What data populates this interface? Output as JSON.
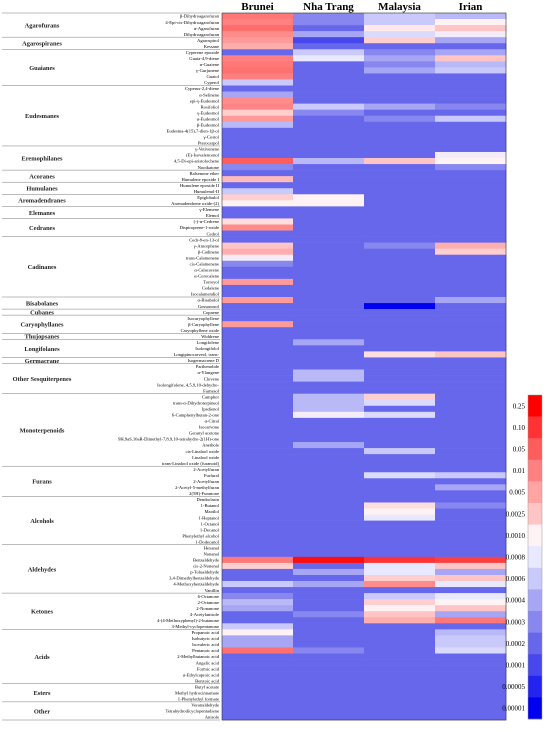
{
  "chart_data": {
    "type": "heatmap",
    "title": "",
    "xlabel": "",
    "ylabel": "",
    "columns": [
      "Brunei",
      "Nha Trang",
      "Malaysia",
      "Irian"
    ],
    "groups": [
      {
        "name": "Agarofurans",
        "compounds": [
          "β-Dihydroagarofuran",
          "4-Epi-cis-Dihydroagarofuran",
          "α-Agarofuran",
          "Dihydroagarofuran"
        ]
      },
      {
        "name": "Agarospiranes",
        "compounds": [
          "Agarospirol",
          "Kessane"
        ]
      },
      {
        "name": "Guaianes",
        "compounds": [
          "Cyperene epoxide",
          "Guaia-4,9-diene",
          "α-Guaiene",
          "γ-Gurjunene",
          "Guaiol",
          "Cyperol"
        ]
      },
      {
        "name": "Eudesmanes",
        "compounds": [
          "Cyperus-2,4-diene",
          "α-Selinene",
          "epi-γ-Eudesmol",
          "Rosifoliol",
          "γ-Eudesmol",
          "α-Eudesmol",
          "β-Eudesmol",
          "Eudesma-4(15),7-dien-1β-ol",
          "γ-Costol",
          "Pterocarpol"
        ]
      },
      {
        "name": "Eremophilanes",
        "compounds": [
          "γ-Vetivenene",
          "(E)-Isovalencenol",
          "4,5-Di-epi-aristolochene",
          "Nootkatone"
        ]
      },
      {
        "name": "Acoranes",
        "compounds": [
          "Balsenone ether",
          "Humulene epoxide I"
        ]
      },
      {
        "name": "Humulanes",
        "compounds": [
          "Humulene epoxide II",
          "Humulenol-II"
        ]
      },
      {
        "name": "Aromadendranes",
        "compounds": [
          "Epiglobulol",
          "Aromadendrene oxide-(2)"
        ]
      },
      {
        "name": "Elemanes",
        "compounds": [
          "γ-Elemene",
          "Elemol"
        ]
      },
      {
        "name": "Cedranes",
        "compounds": [
          "(-)-α-Cedrene",
          "Dispiroprene-1-oxide",
          "Cedrol"
        ]
      },
      {
        "name": "Cadinanes",
        "compounds": [
          "Cedr-8-en-13-ol",
          "γ-Amorphene",
          "β-Cadinene",
          "trans-Calamenene",
          "cis-Calamenene",
          "α-Calacorene",
          "α-Corocalene",
          "Torreyol",
          "Cedalene",
          "Isocalamendiol"
        ]
      },
      {
        "name": "Bisabolanes",
        "compounds": [
          "α-Bisabolol",
          "Gossonorol"
        ]
      },
      {
        "name": "Cubanes",
        "compounds": [
          "Copaene"
        ]
      },
      {
        "name": "Caryophyllanes",
        "compounds": [
          "Isocaryophyllene",
          "β-Caryophyllene",
          "Caryophyllene oxide"
        ]
      },
      {
        "name": "Thujopsanes",
        "compounds": [
          "Widdrene"
        ]
      },
      {
        "name": "Longifolanes",
        "compounds": [
          "Longifolene",
          "Isolongifolol",
          "Longipinocarveol, trans-"
        ]
      },
      {
        "name": "Germacrane",
        "compounds": [
          "Isogermacrene D"
        ]
      },
      {
        "name": "Other Sesquiterpenes",
        "compounds": [
          "Parthenolide",
          "α-Ylangene",
          "Clovene",
          "Isolongifolene, 4,5,9,10-dehydro-",
          "Farnesol"
        ]
      },
      {
        "name": "Monoterpenoids",
        "compounds": [
          "Camphor",
          "trans-α-Dihydroterpineol",
          "Ipsdienol",
          "6-Camphenylbutan-2-one",
          "α-Citral",
          "Isocarvone",
          "Geranyl acetone",
          "9H,9aS,10aR-Dimethyl-7,8,9,10-tetrahydro-2(1H)-one",
          "Anethole",
          "cis-Linalool oxide",
          "Linalool oxide",
          "trans-Linalool oxide (furanoid)"
        ]
      },
      {
        "name": "Furans",
        "compounds": [
          "2-Acetylfuran",
          "Furfural",
          "2-Acetylfuran",
          "2-Acetyl-5-methylfuran",
          "2(5H)-Furanone"
        ]
      },
      {
        "name": "Alcohols",
        "compounds": [
          "Dendrolasin",
          "1-Butanol",
          "Maoilol",
          "1-Heptanol",
          "1-Octanol",
          "1-Decanol",
          "Phenylethyl alcohol",
          "1-Dodecanol"
        ]
      },
      {
        "name": "Aldehydes",
        "compounds": [
          "Hexanal",
          "Nonanal",
          "Benzaldehyde",
          "cis-2-Nonenal",
          "p-Tolualdehyde",
          "3,4-Dimethylbenzaldehyde",
          "4-Methoxybenzaldehyde",
          "Vanillin"
        ]
      },
      {
        "name": "Ketones",
        "compounds": [
          "6-Octanone",
          "2-Octanone",
          "2-Nonanone",
          "4-Acetylanisole",
          "4-(4-Methoxyphenyl)-2-butanone",
          "3-Methyl-cyclopentanone"
        ]
      },
      {
        "name": "Acids",
        "compounds": [
          "Propanoic acid",
          "Isobutyric acid",
          "Isovaleric acid",
          "Pentanoic acid",
          "2-Methylbutanoic acid",
          "Angelic acid",
          "Formic acid",
          "α-Ethylcaproic acid",
          "Benzoic acid"
        ]
      },
      {
        "name": "Esters",
        "compounds": [
          "Butyl acetate",
          "Methyl hydrocinnamate",
          "1-Phenylethyl formate"
        ]
      },
      {
        "name": "Other",
        "compounds": [
          "Veratraldehyde",
          "Tetrahydrodicyclopentadiene",
          "Anisole"
        ]
      }
    ],
    "values": [
      [
        0.015,
        0.0003,
        0.0006,
        0.0005
      ],
      [
        0.01,
        0.0003,
        0.0006,
        0.001
      ],
      [
        0.025,
        0.0002,
        0.0012,
        0.0025
      ],
      [
        0.008,
        0.0004,
        0.0007,
        0.0009
      ],
      [
        0.006,
        0.0001,
        0.002,
        0.0004
      ],
      [
        0.004,
        0.0002,
        0.0002,
        0.0002
      ],
      [
        0.0002,
        0.0006,
        0.0003,
        0.0004
      ],
      [
        0.01,
        0.0008,
        0.0004,
        0.0025
      ],
      [
        0.015,
        0.0002,
        0.0003,
        0.0005
      ],
      [
        0.02,
        0.0002,
        0.0004,
        0.0006
      ],
      [
        0.01,
        0.0002,
        0.0002,
        0.0002
      ],
      [
        0.0006,
        0.0002,
        0.0002,
        0.0002
      ],
      [
        0.0002,
        0.0002,
        0.0002,
        0.0002
      ],
      [
        0.0004,
        0.0002,
        0.0002,
        0.0002
      ],
      [
        0.008,
        0.0002,
        0.0002,
        0.0002
      ],
      [
        0.009,
        0.0006,
        0.0004,
        0.0003
      ],
      [
        0.002,
        0.0003,
        0.0002,
        0.0002
      ],
      [
        0.006,
        0.0002,
        0.0003,
        0.0006
      ],
      [
        0.0005,
        0.0002,
        0.0002,
        0.0002
      ],
      [
        0.0002,
        0.0002,
        0.0002,
        0.0002
      ],
      [
        0.0002,
        0.0002,
        0.0002,
        0.0002
      ],
      [
        0.0002,
        0.0002,
        0.0002,
        0.0002
      ],
      [
        0.0002,
        0.0002,
        0.0002,
        0.0002
      ],
      [
        0.0002,
        0.0002,
        0.0002,
        0.0009
      ],
      [
        0.05,
        0.0005,
        0.0025,
        0.001
      ],
      [
        0.0003,
        0.0002,
        0.0002,
        0.0003
      ],
      [
        0.0002,
        0.0002,
        0.0002,
        0.0002
      ],
      [
        0.003,
        0.0002,
        0.0002,
        0.0002
      ],
      [
        0.0002,
        0.0002,
        0.0002,
        0.0002
      ],
      [
        0.0006,
        0.0002,
        0.0002,
        0.0002
      ],
      [
        0.002,
        0.001,
        0.0002,
        0.0002
      ],
      [
        0.001,
        0.001,
        0.0002,
        0.0002
      ],
      [
        0.0002,
        0.0002,
        0.0002,
        0.0002
      ],
      [
        0.0002,
        0.0002,
        0.0002,
        0.0002
      ],
      [
        0.0015,
        0.0002,
        0.0002,
        0.0002
      ],
      [
        0.008,
        0.0002,
        0.0002,
        0.0002
      ],
      [
        0.0002,
        0.0002,
        0.0002,
        0.0002
      ],
      [
        0.0002,
        0.0002,
        0.0002,
        0.0002
      ],
      [
        0.0025,
        0.0002,
        0.0003,
        0.004
      ],
      [
        0.004,
        0.0002,
        0.0002,
        0.002
      ],
      [
        0.0009,
        0.0002,
        0.0002,
        0.0002
      ],
      [
        0.0003,
        0.0002,
        0.0002,
        0.0002
      ],
      [
        0.0002,
        0.0002,
        0.0002,
        0.0002
      ],
      [
        0.0002,
        0.0002,
        0.0002,
        0.0002
      ],
      [
        0.006,
        0.0002,
        0.0002,
        0.0002
      ],
      [
        0.0002,
        0.0002,
        0.0002,
        0.0002
      ],
      [
        0.0002,
        0.0002,
        0.0002,
        0.0002
      ],
      [
        0.006,
        0.0002,
        0.0002,
        0.0004
      ],
      [
        0.0002,
        0.0002,
        1e-05,
        0.0002
      ],
      [
        0.0002,
        0.0002,
        0.0002,
        0.0002
      ],
      [
        0.0002,
        0.0002,
        0.0002,
        0.0002
      ],
      [
        0.006,
        0.0002,
        0.0002,
        0.0002
      ],
      [
        0.0002,
        0.0002,
        0.0002,
        0.0002
      ],
      [
        0.0002,
        0.0002,
        0.0002,
        0.0002
      ],
      [
        0.0002,
        0.0004,
        0.0002,
        0.0002
      ],
      [
        0.0002,
        0.0002,
        0.0002,
        0.0002
      ],
      [
        0.0002,
        0.0002,
        0.0015,
        0.0025
      ],
      [
        0.0002,
        0.0002,
        0.0002,
        0.0002
      ],
      [
        0.0002,
        0.0002,
        0.0002,
        0.0002
      ],
      [
        0.0002,
        0.0005,
        0.0002,
        0.0002
      ],
      [
        0.0002,
        0.0005,
        0.0002,
        0.0002
      ],
      [
        0.0002,
        0.0002,
        0.0002,
        0.0002
      ],
      [
        0.0002,
        0.0002,
        0.0002,
        0.0002
      ],
      [
        0.0002,
        0.0005,
        0.002,
        0.0002
      ],
      [
        0.0002,
        0.0005,
        0.0007,
        0.0002
      ],
      [
        0.0002,
        0.0005,
        0.0002,
        0.0002
      ],
      [
        0.0002,
        0.0009,
        0.0007,
        0.0002
      ],
      [
        0.0002,
        0.0002,
        0.0002,
        0.0002
      ],
      [
        0.0002,
        0.0002,
        0.0002,
        0.0002
      ],
      [
        0.0002,
        0.0002,
        0.0002,
        0.0002
      ],
      [
        0.0002,
        0.0002,
        0.0002,
        0.0002
      ],
      [
        0.0002,
        0.0004,
        0.0002,
        0.0002
      ],
      [
        0.0002,
        0.0002,
        0.0006,
        0.0002
      ],
      [
        0.0002,
        0.0002,
        0.0002,
        0.0002
      ],
      [
        0.0002,
        0.0002,
        0.0002,
        0.0002
      ],
      [
        0.0002,
        0.0002,
        0.0002,
        0.0002
      ],
      [
        0.0002,
        0.0002,
        0.0007,
        0.0006
      ],
      [
        0.0002,
        0.0002,
        0.0002,
        0.0002
      ],
      [
        0.0002,
        0.0002,
        0.0002,
        0.0004
      ],
      [
        0.0002,
        0.0002,
        0.0002,
        0.0002
      ],
      [
        0.0002,
        0.0002,
        0.0002,
        0.0002
      ],
      [
        0.0002,
        0.0002,
        0.0015,
        0.0003
      ],
      [
        0.0002,
        0.0002,
        0.001,
        0.0002
      ],
      [
        0.0002,
        0.0002,
        0.0008,
        0.0002
      ],
      [
        0.0002,
        0.0002,
        0.0002,
        0.0002
      ],
      [
        0.0002,
        0.0002,
        0.0002,
        0.0002
      ],
      [
        0.0002,
        0.0002,
        0.0002,
        0.0002
      ],
      [
        0.0002,
        0.0002,
        0.0002,
        0.0002
      ],
      [
        0.0002,
        0.0002,
        0.0002,
        0.0002
      ],
      [
        0.0002,
        0.0002,
        0.0002,
        0.0002
      ],
      [
        0.015,
        0.2,
        0.1,
        0.08
      ],
      [
        0.002,
        0.0002,
        0.0008,
        0.0025
      ],
      [
        0.0002,
        0.0004,
        0.0008,
        0.0004
      ],
      [
        0.0002,
        0.0002,
        0.002,
        0.0025
      ],
      [
        0.0006,
        0.0004,
        0.008,
        0.0008
      ],
      [
        0.0002,
        0.0002,
        0.0002,
        0.0002
      ],
      [
        0.0003,
        0.0002,
        0.0006,
        0.0008
      ],
      [
        0.0005,
        0.0002,
        0.002,
        0.001
      ],
      [
        0.0004,
        0.0002,
        0.001,
        0.0025
      ],
      [
        0.0002,
        0.0003,
        0.0025,
        0.0004
      ],
      [
        0.0002,
        0.0002,
        0.004,
        0.015
      ],
      [
        0.0006,
        0.0002,
        0.0002,
        0.0002
      ],
      [
        0.001,
        0.0002,
        0.0002,
        0.0005
      ],
      [
        0.0004,
        0.0002,
        0.0002,
        0.0006
      ],
      [
        0.0004,
        0.0002,
        0.0002,
        0.0006
      ],
      [
        0.02,
        0.0003,
        0.0002,
        0.0007
      ],
      [
        0.0002,
        0.0002,
        0.0002,
        0.0002
      ],
      [
        0.0002,
        0.0002,
        0.0002,
        0.0002
      ],
      [
        0.0002,
        0.0002,
        0.0002,
        0.0002
      ],
      [
        0.0002,
        0.0002,
        0.0002,
        0.0002
      ],
      [
        0.0002,
        0.0002,
        0.0002,
        0.0002
      ],
      [
        0.0002,
        0.0002,
        0.0002,
        0.0002
      ],
      [
        0.0002,
        0.0002,
        0.0002,
        0.0002
      ],
      [
        0.0002,
        0.0002,
        0.0002,
        0.0002
      ],
      [
        0.0002,
        0.0002,
        0.0002,
        0.0002
      ],
      [
        0.0002,
        0.0002,
        0.0002,
        0.0002
      ],
      [
        0.0002,
        0.0002,
        0.0002,
        0.0002
      ]
    ],
    "colorbar": {
      "ticks": [
        "0.25",
        "0.10",
        "0.05",
        "0.01",
        "0.005",
        "0.0025",
        "0.0010",
        "0.0008",
        "0.0006",
        "0.0004",
        "0.0003",
        "0.0002",
        "0.0001",
        "0.00005",
        "0.00001"
      ],
      "tick_values": [
        0.25,
        0.1,
        0.05,
        0.01,
        0.005,
        0.0025,
        0.001,
        0.0008,
        0.0006,
        0.0004,
        0.0003,
        0.0002,
        0.0001,
        5e-05,
        1e-05
      ],
      "colors": [
        "#ff0000",
        "#ff3333",
        "#ff5c5c",
        "#ff8080",
        "#ffa3a3",
        "#ffc4c4",
        "#fff2f4",
        "#e8e8ff",
        "#c9c9fb",
        "#a6a6f5",
        "#8787ef",
        "#6767ec",
        "#4747ec",
        "#2424ee",
        "#0000f0"
      ]
    },
    "legend_position": "right"
  }
}
